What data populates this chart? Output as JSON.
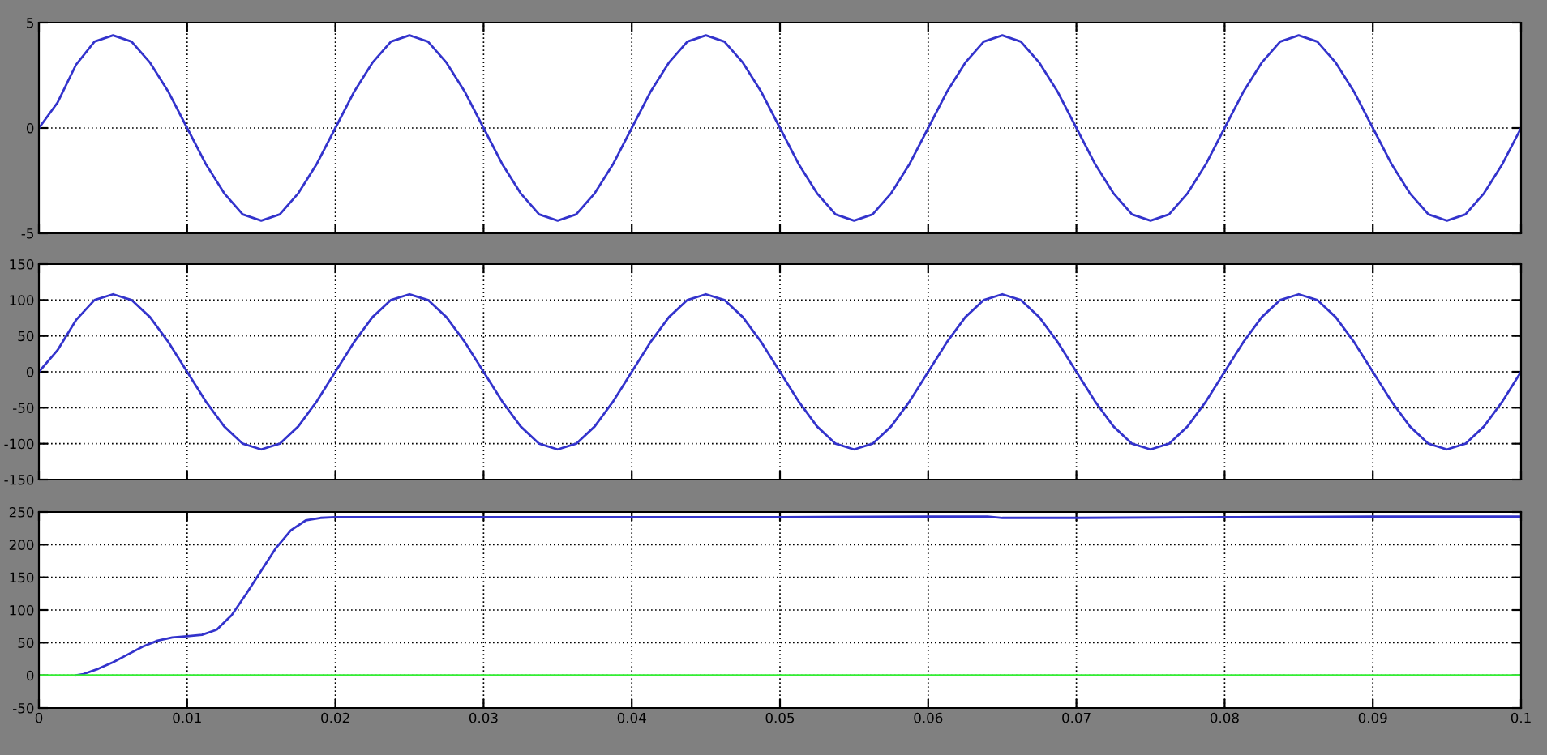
{
  "chart_data": [
    {
      "type": "line",
      "x": [
        0,
        0.00125,
        0.0025,
        0.00375,
        0.005,
        0.00625,
        0.0075,
        0.00875,
        0.01,
        0.01125,
        0.0125,
        0.01375,
        0.015,
        0.01625,
        0.0175,
        0.01875,
        0.02,
        0.02125,
        0.0225,
        0.02375,
        0.025,
        0.02625,
        0.0275,
        0.02875,
        0.03,
        0.03125,
        0.0325,
        0.03375,
        0.035,
        0.03625,
        0.0375,
        0.03875,
        0.04,
        0.04125,
        0.0425,
        0.04375,
        0.045,
        0.04625,
        0.0475,
        0.04875,
        0.05,
        0.05125,
        0.0525,
        0.05375,
        0.055,
        0.05625,
        0.0575,
        0.05875,
        0.06,
        0.06125,
        0.0625,
        0.06375,
        0.065,
        0.06625,
        0.0675,
        0.06875,
        0.07,
        0.07125,
        0.0725,
        0.07375,
        0.075,
        0.07625,
        0.0775,
        0.07875,
        0.08,
        0.08125,
        0.0825,
        0.08375,
        0.085,
        0.08625,
        0.0875,
        0.08875,
        0.09,
        0.09125,
        0.0925,
        0.09375,
        0.095,
        0.09625,
        0.0975,
        0.09875,
        0.1
      ],
      "series": [
        {
          "color": "#3333cc",
          "values": [
            0,
            1.2,
            3.0,
            4.1,
            4.4,
            4.1,
            3.1,
            1.7,
            0,
            -1.7,
            -3.1,
            -4.1,
            -4.4,
            -4.1,
            -3.1,
            -1.7,
            0,
            1.7,
            3.1,
            4.1,
            4.4,
            4.1,
            3.1,
            1.7,
            0,
            -1.7,
            -3.1,
            -4.1,
            -4.4,
            -4.1,
            -3.1,
            -1.7,
            0,
            1.7,
            3.1,
            4.1,
            4.4,
            4.1,
            3.1,
            1.7,
            0,
            -1.7,
            -3.1,
            -4.1,
            -4.4,
            -4.1,
            -3.1,
            -1.7,
            0,
            1.7,
            3.1,
            4.1,
            4.4,
            4.1,
            3.1,
            1.7,
            0,
            -1.7,
            -3.1,
            -4.1,
            -4.4,
            -4.1,
            -3.1,
            -1.7,
            0,
            1.7,
            3.1,
            4.1,
            4.4,
            4.1,
            3.1,
            1.7,
            0,
            -1.7,
            -3.1,
            -4.1,
            -4.4,
            -4.1,
            -3.1,
            -1.7,
            0
          ]
        }
      ],
      "xlim": [
        0,
        0.1
      ],
      "xticks": [
        0,
        0.01,
        0.02,
        0.03,
        0.04,
        0.05,
        0.06,
        0.07,
        0.08,
        0.09,
        0.1
      ],
      "ylim": [
        -5,
        5
      ],
      "yticks": [
        -5,
        0,
        5
      ],
      "grid": true,
      "tick_labels": "y"
    },
    {
      "type": "line",
      "x": [
        0,
        0.00125,
        0.0025,
        0.00375,
        0.005,
        0.00625,
        0.0075,
        0.00875,
        0.01,
        0.01125,
        0.0125,
        0.01375,
        0.015,
        0.01625,
        0.0175,
        0.01875,
        0.02,
        0.02125,
        0.0225,
        0.02375,
        0.025,
        0.02625,
        0.0275,
        0.02875,
        0.03,
        0.03125,
        0.0325,
        0.03375,
        0.035,
        0.03625,
        0.0375,
        0.03875,
        0.04,
        0.04125,
        0.0425,
        0.04375,
        0.045,
        0.04625,
        0.0475,
        0.04875,
        0.05,
        0.05125,
        0.0525,
        0.05375,
        0.055,
        0.05625,
        0.0575,
        0.05875,
        0.06,
        0.06125,
        0.0625,
        0.06375,
        0.065,
        0.06625,
        0.0675,
        0.06875,
        0.07,
        0.07125,
        0.0725,
        0.07375,
        0.075,
        0.07625,
        0.0775,
        0.07875,
        0.08,
        0.08125,
        0.0825,
        0.08375,
        0.085,
        0.08625,
        0.0875,
        0.08875,
        0.09,
        0.09125,
        0.0925,
        0.09375,
        0.095,
        0.09625,
        0.0975,
        0.09875,
        0.1
      ],
      "series": [
        {
          "color": "#3333cc",
          "values": [
            0,
            30,
            72,
            100,
            108,
            100,
            76,
            41,
            0,
            -41,
            -76,
            -100,
            -108,
            -100,
            -76,
            -41,
            0,
            41,
            76,
            100,
            108,
            100,
            76,
            41,
            0,
            -41,
            -76,
            -100,
            -108,
            -100,
            -76,
            -41,
            0,
            41,
            76,
            100,
            108,
            100,
            76,
            41,
            0,
            -41,
            -76,
            -100,
            -108,
            -100,
            -76,
            -41,
            0,
            41,
            76,
            100,
            108,
            100,
            76,
            41,
            0,
            -41,
            -76,
            -100,
            -108,
            -100,
            -76,
            -41,
            0,
            41,
            76,
            100,
            108,
            100,
            76,
            41,
            0,
            -41,
            -76,
            -100,
            -108,
            -100,
            -76,
            -41,
            0
          ]
        }
      ],
      "xlim": [
        0,
        0.1
      ],
      "xticks": [
        0,
        0.01,
        0.02,
        0.03,
        0.04,
        0.05,
        0.06,
        0.07,
        0.08,
        0.09,
        0.1
      ],
      "ylim": [
        -150,
        150
      ],
      "yticks": [
        -150,
        -100,
        -50,
        0,
        50,
        100,
        150
      ],
      "grid": true,
      "tick_labels": "y"
    },
    {
      "type": "line",
      "series": [
        {
          "color": "#3333cc",
          "x": [
            0.0025,
            0.003,
            0.004,
            0.005,
            0.006,
            0.007,
            0.008,
            0.009,
            0.01,
            0.011,
            0.012,
            0.013,
            0.014,
            0.015,
            0.016,
            0.017,
            0.018,
            0.019,
            0.02,
            0.03,
            0.04,
            0.05,
            0.06,
            0.064,
            0.065,
            0.07,
            0.08,
            0.09,
            0.1
          ],
          "values": [
            0,
            2,
            10,
            20,
            32,
            44,
            53,
            58,
            60,
            62,
            70,
            92,
            125,
            160,
            195,
            222,
            237,
            241,
            242,
            242,
            242,
            242,
            243,
            243,
            241,
            241,
            242,
            243,
            243
          ]
        },
        {
          "color": "#33ee33",
          "x": [
            0,
            0.1
          ],
          "values": [
            0,
            0
          ]
        }
      ],
      "xlim": [
        0,
        0.1
      ],
      "xticks": [
        0,
        0.01,
        0.02,
        0.03,
        0.04,
        0.05,
        0.06,
        0.07,
        0.08,
        0.09,
        0.1
      ],
      "ylim": [
        -50,
        250
      ],
      "yticks": [
        -50,
        0,
        50,
        100,
        150,
        200,
        250
      ],
      "grid": true
    }
  ]
}
